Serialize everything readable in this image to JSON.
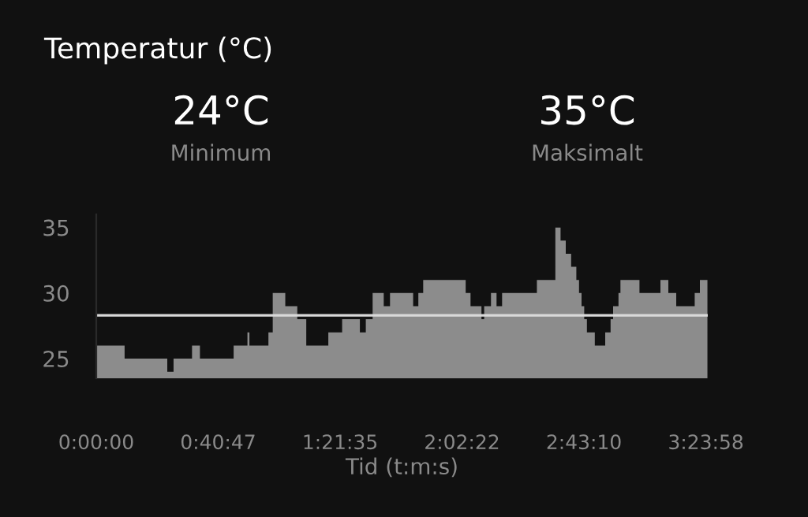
{
  "chart_data": {
    "type": "area",
    "title": "Temperatur (°C)",
    "xlabel": "Tid (t:m:s)",
    "annotations": [
      "24°C",
      "Minimum",
      "35°C",
      "Maksimalt"
    ],
    "x": [
      0,
      0.158,
      0.396,
      0.431,
      0.534,
      0.578,
      0.766,
      0.843,
      0.854,
      0.96,
      0.984,
      1.054,
      1.121,
      1.171,
      1.294,
      1.371,
      1.47,
      1.503,
      1.541,
      1.603,
      1.638,
      1.767,
      1.796,
      1.823,
      2.06,
      2.087,
      2.148,
      2.163,
      2.201,
      2.232,
      2.263,
      2.457,
      2.56,
      2.589,
      2.618,
      2.648,
      2.677,
      2.692,
      2.706,
      2.721,
      2.736,
      2.78,
      2.838,
      2.868,
      2.882,
      2.912,
      2.923,
      3.029,
      3.146,
      3.19,
      3.234,
      3.337,
      3.366,
      3.408
    ],
    "series": [
      {
        "color": "#8c8c8c",
        "values": [
          26,
          25,
          24,
          25,
          26,
          25,
          26,
          27,
          26,
          27,
          30,
          29,
          28,
          26,
          27,
          28,
          27,
          28,
          30,
          29,
          30,
          29,
          30,
          31,
          30,
          29,
          28,
          29,
          30,
          29,
          30,
          31,
          35,
          34,
          33,
          32,
          31,
          30,
          29,
          28,
          27,
          26,
          27,
          28,
          29,
          30,
          31,
          30,
          31,
          30,
          29,
          30,
          31,
          31
        ]
      }
    ],
    "ref_lines": [
      {
        "axis": "y",
        "value": 28.3,
        "color": "#d9d9d9"
      }
    ],
    "xlim": [
      0,
      3.41
    ],
    "xticks": [
      {
        "value": 0,
        "label": "0:00:00"
      },
      {
        "value": 0.6797,
        "label": "0:40:47"
      },
      {
        "value": 1.3597,
        "label": "1:21:35"
      },
      {
        "value": 2.0394,
        "label": "2:02:22"
      },
      {
        "value": 2.7194,
        "label": "2:43:10"
      },
      {
        "value": 3.3994,
        "label": "3:23:58"
      }
    ],
    "ylim": [
      23.5,
      36
    ],
    "yticks": [
      25,
      30,
      35
    ],
    "grid": false,
    "legend": false
  }
}
